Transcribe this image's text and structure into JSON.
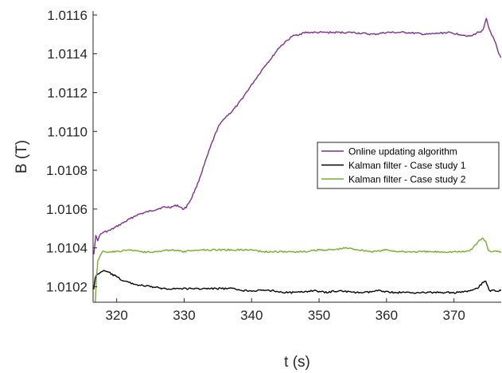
{
  "chart_data": {
    "type": "line",
    "title": "",
    "xlabel": "t (s)",
    "ylabel": "B (T)",
    "xlim": [
      316.5,
      377
    ],
    "ylim": [
      1.01012,
      1.01162
    ],
    "xticks": [
      320,
      330,
      340,
      350,
      360,
      370
    ],
    "xtick_labels": [
      "320",
      "330",
      "340",
      "350",
      "360",
      "370"
    ],
    "yticks": [
      1.0102,
      1.0104,
      1.0106,
      1.0108,
      1.011,
      1.0112,
      1.0114,
      1.0116
    ],
    "ytick_labels": [
      "1.0102",
      "1.0104",
      "1.0106",
      "1.0108",
      "1.0110",
      "1.0112",
      "1.0114",
      "1.0116"
    ],
    "grid": false,
    "legend_position": "center-right",
    "series": [
      {
        "name": "Online updating algorithm",
        "color": "#7e2f8e",
        "points": [
          [
            316.6,
            1.01037
          ],
          [
            316.9,
            1.01046
          ],
          [
            317.2,
            1.01044
          ],
          [
            317.6,
            1.01047
          ],
          [
            318.0,
            1.01048
          ],
          [
            319.0,
            1.01049
          ],
          [
            320.0,
            1.01051
          ],
          [
            321.0,
            1.01053
          ],
          [
            322.0,
            1.01055
          ],
          [
            323.0,
            1.01057
          ],
          [
            324.0,
            1.01058
          ],
          [
            325.0,
            1.01059
          ],
          [
            326.0,
            1.0106
          ],
          [
            327.0,
            1.01061
          ],
          [
            328.0,
            1.01061
          ],
          [
            329.0,
            1.01062
          ],
          [
            329.8,
            1.0106
          ],
          [
            330.3,
            1.01061
          ],
          [
            331.0,
            1.01065
          ],
          [
            332.0,
            1.01073
          ],
          [
            333.0,
            1.01083
          ],
          [
            334.0,
            1.01093
          ],
          [
            335.0,
            1.01102
          ],
          [
            336.0,
            1.01107
          ],
          [
            337.0,
            1.0111
          ],
          [
            338.0,
            1.01114
          ],
          [
            339.0,
            1.01119
          ],
          [
            340.0,
            1.01124
          ],
          [
            341.0,
            1.01129
          ],
          [
            342.0,
            1.01134
          ],
          [
            343.0,
            1.01138
          ],
          [
            344.0,
            1.01143
          ],
          [
            345.0,
            1.01146
          ],
          [
            346.0,
            1.01149
          ],
          [
            347.0,
            1.0115
          ],
          [
            348.0,
            1.01151
          ],
          [
            350.0,
            1.01151
          ],
          [
            352.0,
            1.01151
          ],
          [
            355.0,
            1.01151
          ],
          [
            358.0,
            1.0115
          ],
          [
            360.0,
            1.01151
          ],
          [
            363.0,
            1.01151
          ],
          [
            366.0,
            1.0115
          ],
          [
            369.0,
            1.01151
          ],
          [
            371.0,
            1.0115
          ],
          [
            372.5,
            1.01149
          ],
          [
            373.5,
            1.01151
          ],
          [
            374.3,
            1.01152
          ],
          [
            374.8,
            1.01158
          ],
          [
            375.2,
            1.01153
          ],
          [
            375.6,
            1.0115
          ],
          [
            376.2,
            1.01145
          ],
          [
            376.6,
            1.0114
          ],
          [
            377.0,
            1.01138
          ]
        ]
      },
      {
        "name": "Kalman filter - Case study 1",
        "color": "#000000",
        "points": [
          [
            316.6,
            1.01019
          ],
          [
            316.8,
            1.01024
          ],
          [
            317.0,
            1.01026
          ],
          [
            317.4,
            1.01027
          ],
          [
            317.8,
            1.01028
          ],
          [
            318.3,
            1.01028
          ],
          [
            319.0,
            1.01027
          ],
          [
            320.0,
            1.01025
          ],
          [
            321.0,
            1.01023
          ],
          [
            322.0,
            1.01022
          ],
          [
            323.0,
            1.01021
          ],
          [
            325.0,
            1.0102
          ],
          [
            327.0,
            1.01019
          ],
          [
            329.0,
            1.01019
          ],
          [
            331.0,
            1.01019
          ],
          [
            333.0,
            1.01019
          ],
          [
            335.0,
            1.01019
          ],
          [
            337.0,
            1.01019
          ],
          [
            339.0,
            1.01018
          ],
          [
            341.0,
            1.01018
          ],
          [
            343.0,
            1.01018
          ],
          [
            345.0,
            1.01017
          ],
          [
            347.0,
            1.01017
          ],
          [
            349.0,
            1.01018
          ],
          [
            351.0,
            1.01017
          ],
          [
            353.0,
            1.01018
          ],
          [
            355.0,
            1.01017
          ],
          [
            357.0,
            1.01017
          ],
          [
            359.0,
            1.01018
          ],
          [
            361.0,
            1.01017
          ],
          [
            363.0,
            1.01017
          ],
          [
            365.0,
            1.01017
          ],
          [
            367.0,
            1.01017
          ],
          [
            369.0,
            1.01017
          ],
          [
            371.0,
            1.01017
          ],
          [
            372.5,
            1.01018
          ],
          [
            373.5,
            1.01019
          ],
          [
            374.2,
            1.01022
          ],
          [
            374.7,
            1.01023
          ],
          [
            375.2,
            1.01018
          ],
          [
            375.8,
            1.01018
          ],
          [
            376.5,
            1.01018
          ],
          [
            377.0,
            1.01018
          ]
        ]
      },
      {
        "name": "Kalman filter - Case study 2",
        "color": "#77ac30",
        "points": [
          [
            316.6,
            1.01006
          ],
          [
            316.8,
            1.0101
          ],
          [
            317.0,
            1.01025
          ],
          [
            317.2,
            1.01033
          ],
          [
            317.5,
            1.01036
          ],
          [
            318.0,
            1.01038
          ],
          [
            319.0,
            1.01038
          ],
          [
            320.0,
            1.01038
          ],
          [
            322.0,
            1.01039
          ],
          [
            324.0,
            1.01038
          ],
          [
            326.0,
            1.01038
          ],
          [
            328.0,
            1.01039
          ],
          [
            330.0,
            1.01038
          ],
          [
            332.0,
            1.01039
          ],
          [
            334.0,
            1.01039
          ],
          [
            336.0,
            1.01039
          ],
          [
            338.0,
            1.01039
          ],
          [
            340.0,
            1.01039
          ],
          [
            342.0,
            1.01038
          ],
          [
            344.0,
            1.01038
          ],
          [
            346.0,
            1.01038
          ],
          [
            348.0,
            1.01038
          ],
          [
            350.0,
            1.01039
          ],
          [
            352.0,
            1.01039
          ],
          [
            354.0,
            1.0104
          ],
          [
            356.0,
            1.01039
          ],
          [
            358.0,
            1.01038
          ],
          [
            360.0,
            1.01039
          ],
          [
            362.0,
            1.01038
          ],
          [
            364.0,
            1.01038
          ],
          [
            366.0,
            1.01038
          ],
          [
            368.0,
            1.01038
          ],
          [
            370.0,
            1.01038
          ],
          [
            371.5,
            1.01038
          ],
          [
            372.5,
            1.01039
          ],
          [
            373.3,
            1.01042
          ],
          [
            373.8,
            1.01044
          ],
          [
            374.3,
            1.01045
          ],
          [
            374.7,
            1.01043
          ],
          [
            375.1,
            1.01039
          ],
          [
            375.6,
            1.01038
          ],
          [
            376.3,
            1.01038
          ],
          [
            377.0,
            1.01038
          ]
        ]
      }
    ]
  }
}
